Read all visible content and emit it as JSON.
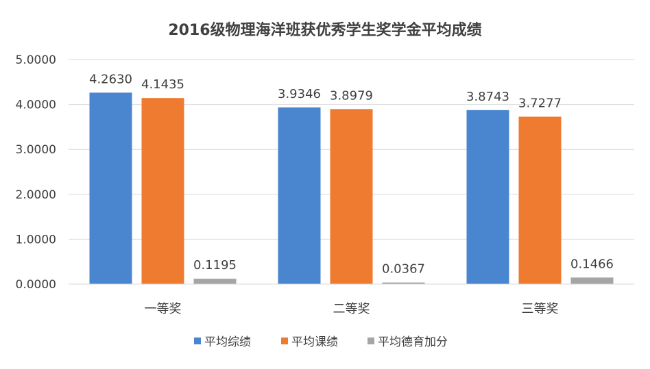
{
  "chart_data": {
    "type": "bar",
    "title": "2016级物理海洋班获优秀学生奖学金平均成绩",
    "categories": [
      "一等奖",
      "二等奖",
      "三等奖"
    ],
    "series": [
      {
        "name": "平均综绩",
        "values": [
          4.263,
          3.9346,
          3.8743
        ],
        "labels": [
          "4.2630",
          "3.9346",
          "3.8743"
        ],
        "color": "#4a86cf"
      },
      {
        "name": "平均课绩",
        "values": [
          4.1435,
          3.8979,
          3.7277
        ],
        "labels": [
          "4.1435",
          "3.8979",
          "3.7277"
        ],
        "color": "#ee7b30"
      },
      {
        "name": "平均德育加分",
        "values": [
          0.1195,
          0.0367,
          0.1466
        ],
        "labels": [
          "0.1195",
          "0.0367",
          "0.1466"
        ],
        "color": "#a5a5a5"
      }
    ],
    "yticks": [
      "0.0000",
      "1.0000",
      "2.0000",
      "3.0000",
      "4.0000",
      "5.0000"
    ],
    "ylim": [
      0,
      5
    ],
    "grid": true,
    "legend_position": "bottom"
  }
}
